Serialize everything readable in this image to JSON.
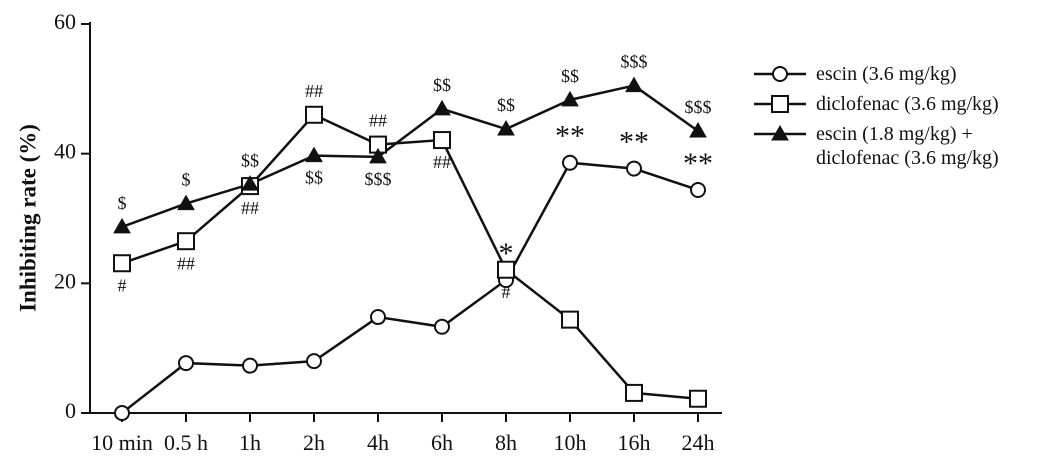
{
  "chart_data": {
    "type": "line",
    "y_label": "Inhibiting rate (%)",
    "categories": [
      "10 min",
      "0.5 h",
      "1h",
      "2h",
      "4h",
      "6h",
      "8h",
      "10h",
      "16h",
      "24h"
    ],
    "ylim": [
      0,
      60
    ],
    "yticks": [
      0,
      20,
      40,
      60
    ],
    "series": [
      {
        "name": "escin (3.6 mg/kg)",
        "color": "#111111",
        "marker": "circle",
        "values": [
          0,
          7.7,
          7.3,
          8.0,
          14.8,
          13.3,
          20.5,
          38.6,
          37.7,
          34.4
        ],
        "labels_above": [
          null,
          null,
          null,
          null,
          null,
          null,
          "*",
          "**",
          "**",
          "**"
        ],
        "labels_below": [
          null,
          null,
          null,
          null,
          null,
          null,
          null,
          null,
          null,
          null
        ]
      },
      {
        "name": "diclofenac (3.6 mg/kg)",
        "color": "#111111",
        "marker": "square",
        "values": [
          23.1,
          26.5,
          35.0,
          46.0,
          41.4,
          42.1,
          22.1,
          14.4,
          3.1,
          2.2
        ],
        "labels_above": [
          null,
          null,
          null,
          "##",
          "##",
          null,
          null,
          null,
          null,
          null
        ],
        "labels_below": [
          "#",
          "##",
          "##",
          null,
          null,
          "##",
          "#",
          null,
          null,
          null
        ]
      },
      {
        "name": "escin (1.8 mg/kg) + diclofenac (3.6 mg/kg)",
        "color": "#111111",
        "marker": "triangle",
        "values": [
          28.7,
          32.3,
          35.3,
          39.7,
          39.5,
          46.9,
          43.8,
          48.3,
          50.5,
          43.5
        ],
        "labels_above": [
          "$",
          "$",
          "$$",
          null,
          null,
          "$$",
          "$$",
          "$$",
          "$$$",
          "$$$"
        ],
        "labels_below": [
          null,
          null,
          null,
          "$$",
          "$$$",
          null,
          null,
          null,
          null,
          null
        ]
      }
    ]
  }
}
